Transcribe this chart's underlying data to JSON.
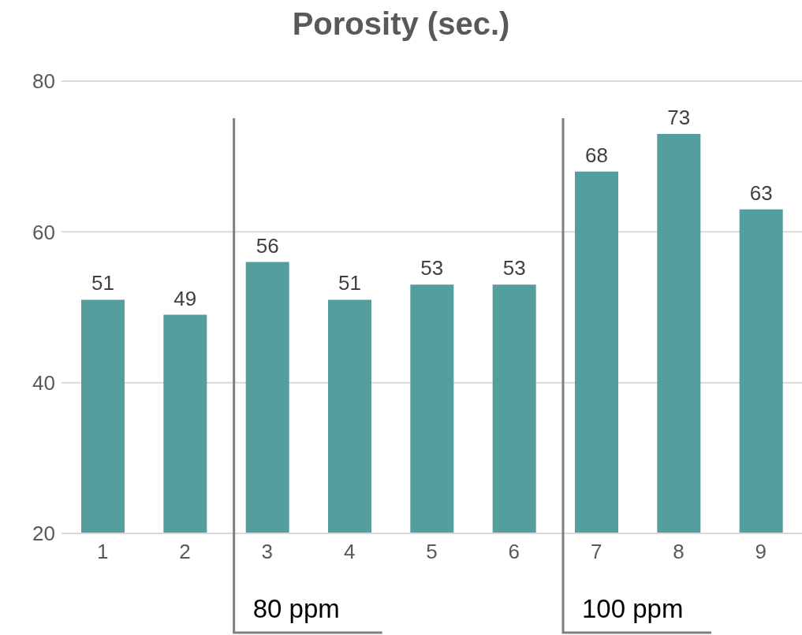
{
  "chart_data": {
    "type": "bar",
    "title": "Porosity (sec.)",
    "categories": [
      "1",
      "2",
      "3",
      "4",
      "5",
      "6",
      "7",
      "8",
      "9"
    ],
    "values": [
      51,
      49,
      56,
      51,
      53,
      53,
      68,
      73,
      63
    ],
    "color": "#549f9d",
    "ylim": [
      20,
      80
    ],
    "yticks": [
      20,
      40,
      60,
      80
    ],
    "grid": "y",
    "data_labels": true,
    "legend": false,
    "ref_lines": [
      {
        "axis": "x",
        "value": "3",
        "label": "80 ppm",
        "color": "#7f7f7f"
      },
      {
        "axis": "x",
        "value": "7",
        "label": "100 ppm",
        "color": "#7f7f7f"
      }
    ]
  }
}
